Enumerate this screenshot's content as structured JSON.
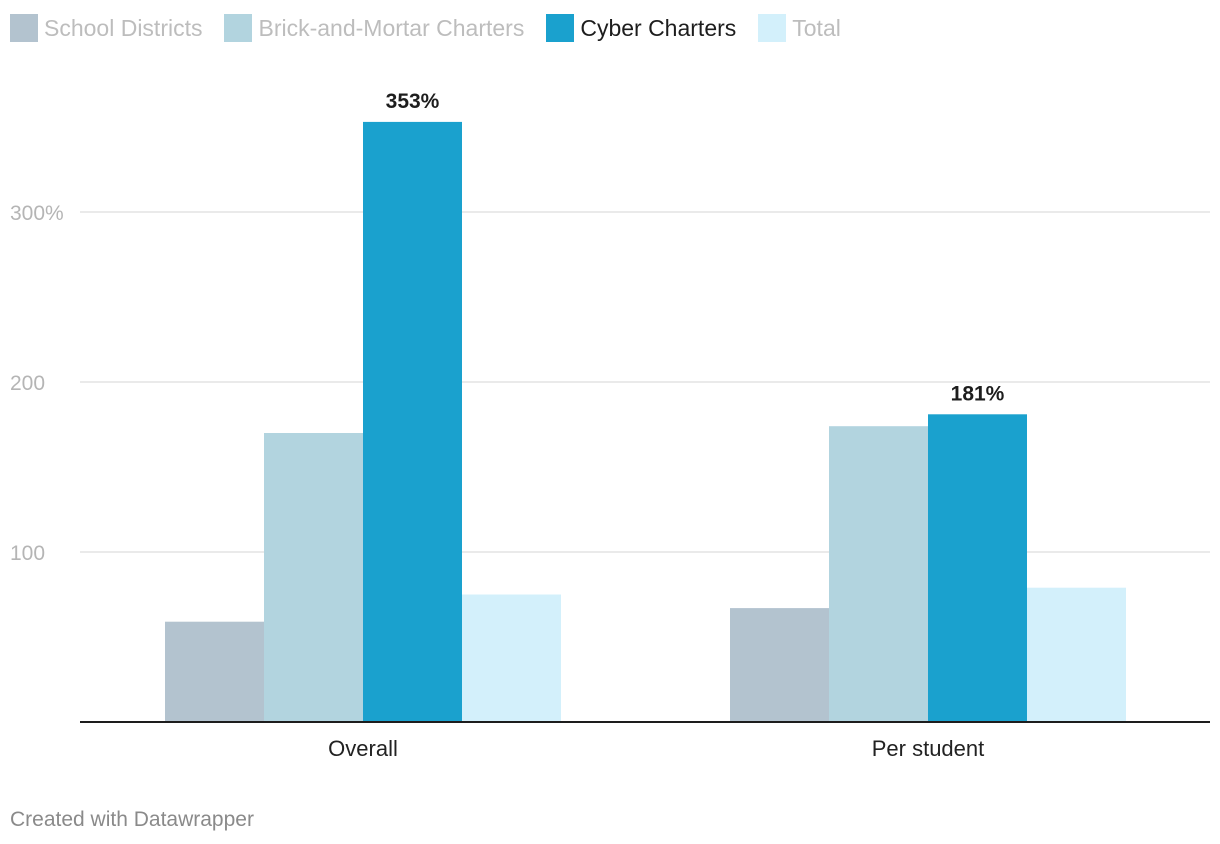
{
  "chart_data": {
    "type": "bar",
    "categories": [
      "Overall",
      "Per student"
    ],
    "series": [
      {
        "name": "School Districts",
        "values": [
          59,
          67
        ],
        "color": "#b3c3cf"
      },
      {
        "name": "Brick-and-Mortar Charters",
        "values": [
          170,
          174
        ],
        "color": "#b2d4df"
      },
      {
        "name": "Cyber Charters",
        "values": [
          353,
          181
        ],
        "color": "#1aa1ce"
      },
      {
        "name": "Total",
        "values": [
          75,
          79
        ],
        "color": "#d3f0fb"
      }
    ],
    "highlighted_series": "Cyber Charters",
    "data_labels": [
      {
        "series": "Cyber Charters",
        "category": "Overall",
        "text": "353%"
      },
      {
        "series": "Cyber Charters",
        "category": "Per student",
        "text": "181%"
      }
    ],
    "y_ticks": [
      {
        "value": 100,
        "label": "100"
      },
      {
        "value": 200,
        "label": "200"
      },
      {
        "value": 300,
        "label": "300%"
      }
    ],
    "ylim": [
      0,
      380
    ],
    "grid": true,
    "legend_position": "top-left",
    "title": "",
    "xlabel": "",
    "ylabel": ""
  },
  "footer": {
    "credit": "Created with Datawrapper"
  },
  "colors": {
    "axis": "#1d1d1d",
    "grid": "#e3e3e3",
    "tick_label": "#b5b5b5",
    "category_label": "#222222",
    "data_label": "#1d1d1d"
  }
}
